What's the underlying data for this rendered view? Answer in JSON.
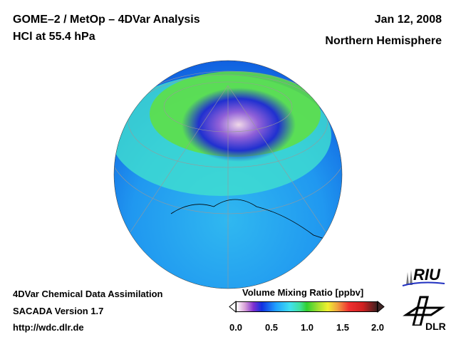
{
  "header": {
    "title_line1": "GOME–2 / MetOp – 4DVar Analysis",
    "title_line2": "HCl at 55.4 hPa",
    "date": "Jan 12, 2008",
    "region": "Northern Hemisphere"
  },
  "footer": {
    "line1": "4DVar Chemical Data Assimilation",
    "line2": "SACADA Version 1.7",
    "url": "http://wdc.dlr.de"
  },
  "colorbar": {
    "title": "Volume Mixing Ratio [ppbv]",
    "ticks": [
      "0.0",
      "0.5",
      "1.0",
      "1.5",
      "2.0"
    ],
    "range": [
      0.0,
      2.0
    ]
  },
  "logos": {
    "riu": "RIU",
    "dlr": "DLR"
  }
}
